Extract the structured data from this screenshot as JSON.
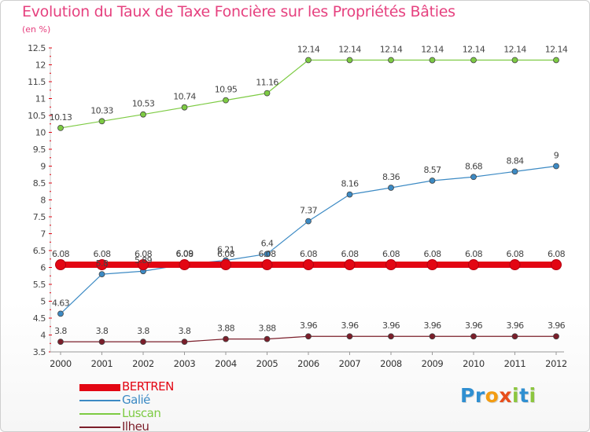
{
  "chart_data": {
    "type": "line",
    "title": "Evolution du Taux de Taxe Foncière sur les Propriétés Bâties",
    "subtitle": "(en %)",
    "xlabel": "",
    "ylabel": "",
    "ylim": [
      3.5,
      12.5
    ],
    "yticks": [
      "3.5",
      "4",
      "4.5",
      "5",
      "5.5",
      "6",
      "6.5",
      "7",
      "7.5",
      "8",
      "8.5",
      "9",
      "9.5",
      "10",
      "10.5",
      "11",
      "11.5",
      "12",
      "12.5"
    ],
    "categories": [
      "2000",
      "2001",
      "2002",
      "2003",
      "2004",
      "2005",
      "2006",
      "2007",
      "2008",
      "2009",
      "2010",
      "2011",
      "2012"
    ],
    "series": [
      {
        "name": "BERTREN",
        "color": "#e30613",
        "values": [
          6.08,
          6.08,
          6.08,
          6.08,
          6.08,
          6.08,
          6.08,
          6.08,
          6.08,
          6.08,
          6.08,
          6.08,
          6.08
        ],
        "labels": [
          "6.08",
          "6.08",
          "6.08",
          "6.08",
          "6.08",
          "6.08",
          "6.08",
          "6.08",
          "6.08",
          "6.08",
          "6.08",
          "6.08",
          "6.08"
        ]
      },
      {
        "name": "Galié",
        "color": "#3c8ac4",
        "values": [
          4.63,
          5.8,
          5.89,
          6.09,
          6.21,
          6.4,
          7.37,
          8.16,
          8.36,
          8.57,
          8.68,
          8.84,
          9
        ],
        "labels": [
          "4.63",
          "5.8",
          "5.89",
          "6.09",
          "6.21",
          "6.4",
          "7.37",
          "8.16",
          "8.36",
          "8.57",
          "8.68",
          "8.84",
          "9"
        ]
      },
      {
        "name": "Luscan",
        "color": "#7dcb43",
        "values": [
          10.13,
          10.33,
          10.53,
          10.74,
          10.95,
          11.16,
          12.14,
          12.14,
          12.14,
          12.14,
          12.14,
          12.14,
          12.14
        ],
        "labels": [
          "10.13",
          "10.33",
          "10.53",
          "10.74",
          "10.95",
          "11.16",
          "12.14",
          "12.14",
          "12.14",
          "12.14",
          "12.14",
          "12.14",
          "12.14"
        ]
      },
      {
        "name": "Ilheu",
        "color": "#7b1e2a",
        "values": [
          3.8,
          3.8,
          3.8,
          3.8,
          3.88,
          3.88,
          3.96,
          3.96,
          3.96,
          3.96,
          3.96,
          3.96,
          3.96
        ],
        "labels": [
          "3.8",
          "3.8",
          "3.8",
          "3.8",
          "3.88",
          "3.88",
          "3.96",
          "3.96",
          "3.96",
          "3.96",
          "3.96",
          "3.96",
          "3.96"
        ]
      }
    ],
    "legend_position": "bottom-left"
  },
  "branding": {
    "letters": [
      {
        "char": "P",
        "color": "#2f8fd1"
      },
      {
        "char": "r",
        "color": "#2f8fd1"
      },
      {
        "char": "o",
        "color": "#f39c12"
      },
      {
        "char": "x",
        "color": "#e84e1b"
      },
      {
        "char": "i",
        "color": "#8cc63f"
      },
      {
        "char": "t",
        "color": "#2f8fd1"
      },
      {
        "char": "i",
        "color": "#8cc63f"
      }
    ]
  }
}
